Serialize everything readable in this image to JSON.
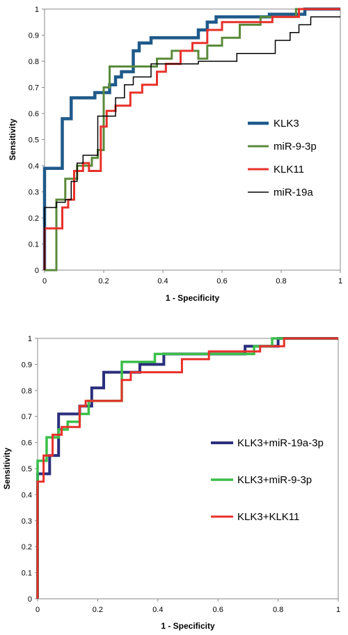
{
  "chart_data": [
    {
      "type": "line",
      "xlabel": "1 - Specificity",
      "ylabel": "Sensitivity",
      "xlim": [
        0,
        1
      ],
      "ylim": [
        0,
        1
      ],
      "xticks": [
        "0",
        "0.2",
        "0.4",
        "0.6",
        "0.8",
        "1"
      ],
      "yticks": [
        "0",
        "0.1",
        "0.2",
        "0.3",
        "0.4",
        "0.5",
        "0.6",
        "0.7",
        "0.8",
        "0.9",
        "1"
      ],
      "grid": false,
      "legend_position": "right",
      "series": [
        {
          "name": "KLK3",
          "color": "#1f5a8a",
          "width": 4.5,
          "points": [
            [
              0,
              0
            ],
            [
              0,
              0.39
            ],
            [
              0.06,
              0.39
            ],
            [
              0.06,
              0.58
            ],
            [
              0.09,
              0.58
            ],
            [
              0.09,
              0.66
            ],
            [
              0.17,
              0.66
            ],
            [
              0.17,
              0.68
            ],
            [
              0.22,
              0.68
            ],
            [
              0.22,
              0.71
            ],
            [
              0.24,
              0.71
            ],
            [
              0.24,
              0.74
            ],
            [
              0.26,
              0.74
            ],
            [
              0.26,
              0.76
            ],
            [
              0.3,
              0.76
            ],
            [
              0.3,
              0.84
            ],
            [
              0.32,
              0.84
            ],
            [
              0.32,
              0.87
            ],
            [
              0.36,
              0.87
            ],
            [
              0.36,
              0.89
            ],
            [
              0.52,
              0.89
            ],
            [
              0.52,
              0.92
            ],
            [
              0.55,
              0.92
            ],
            [
              0.55,
              0.95
            ],
            [
              0.58,
              0.95
            ],
            [
              0.58,
              0.97
            ],
            [
              0.76,
              0.97
            ],
            [
              0.76,
              0.98
            ],
            [
              0.88,
              0.98
            ],
            [
              0.88,
              1
            ],
            [
              1,
              1
            ]
          ]
        },
        {
          "name": "miR-9-3p",
          "color": "#5a8a3a",
          "width": 3,
          "points": [
            [
              0,
              0
            ],
            [
              0.04,
              0
            ],
            [
              0.04,
              0.27
            ],
            [
              0.07,
              0.27
            ],
            [
              0.07,
              0.35
            ],
            [
              0.11,
              0.35
            ],
            [
              0.11,
              0.4
            ],
            [
              0.16,
              0.4
            ],
            [
              0.16,
              0.43
            ],
            [
              0.18,
              0.43
            ],
            [
              0.18,
              0.46
            ],
            [
              0.2,
              0.46
            ],
            [
              0.2,
              0.7
            ],
            [
              0.22,
              0.7
            ],
            [
              0.22,
              0.78
            ],
            [
              0.38,
              0.78
            ],
            [
              0.38,
              0.81
            ],
            [
              0.43,
              0.81
            ],
            [
              0.43,
              0.84
            ],
            [
              0.52,
              0.84
            ],
            [
              0.52,
              0.81
            ],
            [
              0.55,
              0.81
            ],
            [
              0.55,
              0.86
            ],
            [
              0.6,
              0.86
            ],
            [
              0.6,
              0.89
            ],
            [
              0.66,
              0.89
            ],
            [
              0.66,
              0.94
            ],
            [
              0.73,
              0.94
            ],
            [
              0.73,
              0.97
            ],
            [
              0.85,
              0.97
            ],
            [
              0.85,
              1
            ],
            [
              1,
              1
            ]
          ]
        },
        {
          "name": "KLK11",
          "color": "#e8302a",
          "width": 3,
          "points": [
            [
              0,
              0
            ],
            [
              0,
              0.16
            ],
            [
              0.06,
              0.16
            ],
            [
              0.06,
              0.24
            ],
            [
              0.08,
              0.24
            ],
            [
              0.08,
              0.27
            ],
            [
              0.1,
              0.27
            ],
            [
              0.1,
              0.38
            ],
            [
              0.13,
              0.38
            ],
            [
              0.13,
              0.41
            ],
            [
              0.15,
              0.41
            ],
            [
              0.15,
              0.38
            ],
            [
              0.19,
              0.38
            ],
            [
              0.19,
              0.55
            ],
            [
              0.21,
              0.55
            ],
            [
              0.21,
              0.61
            ],
            [
              0.24,
              0.61
            ],
            [
              0.24,
              0.63
            ],
            [
              0.29,
              0.63
            ],
            [
              0.29,
              0.68
            ],
            [
              0.33,
              0.68
            ],
            [
              0.33,
              0.71
            ],
            [
              0.38,
              0.71
            ],
            [
              0.38,
              0.76
            ],
            [
              0.41,
              0.76
            ],
            [
              0.41,
              0.79
            ],
            [
              0.46,
              0.79
            ],
            [
              0.46,
              0.84
            ],
            [
              0.5,
              0.84
            ],
            [
              0.5,
              0.87
            ],
            [
              0.55,
              0.87
            ],
            [
              0.55,
              0.92
            ],
            [
              0.6,
              0.92
            ],
            [
              0.6,
              0.95
            ],
            [
              0.77,
              0.95
            ],
            [
              0.77,
              0.97
            ],
            [
              0.86,
              0.97
            ],
            [
              0.86,
              1
            ],
            [
              1,
              1
            ]
          ]
        },
        {
          "name": "miR-19a",
          "color": "#000000",
          "width": 1.5,
          "points": [
            [
              0,
              0
            ],
            [
              0,
              0.24
            ],
            [
              0.04,
              0.24
            ],
            [
              0.04,
              0.26
            ],
            [
              0.07,
              0.26
            ],
            [
              0.07,
              0.27
            ],
            [
              0.09,
              0.27
            ],
            [
              0.09,
              0.34
            ],
            [
              0.11,
              0.34
            ],
            [
              0.11,
              0.41
            ],
            [
              0.13,
              0.41
            ],
            [
              0.13,
              0.44
            ],
            [
              0.18,
              0.44
            ],
            [
              0.18,
              0.59
            ],
            [
              0.24,
              0.59
            ],
            [
              0.24,
              0.66
            ],
            [
              0.27,
              0.66
            ],
            [
              0.27,
              0.71
            ],
            [
              0.3,
              0.71
            ],
            [
              0.3,
              0.74
            ],
            [
              0.36,
              0.74
            ],
            [
              0.36,
              0.79
            ],
            [
              0.52,
              0.79
            ],
            [
              0.52,
              0.8
            ],
            [
              0.65,
              0.8
            ],
            [
              0.65,
              0.83
            ],
            [
              0.78,
              0.83
            ],
            [
              0.78,
              0.88
            ],
            [
              0.83,
              0.88
            ],
            [
              0.83,
              0.91
            ],
            [
              0.86,
              0.91
            ],
            [
              0.86,
              0.94
            ],
            [
              0.9,
              0.94
            ],
            [
              0.9,
              0.97
            ],
            [
              1,
              0.97
            ]
          ]
        }
      ]
    },
    {
      "type": "line",
      "xlabel": "1 - Specificity",
      "ylabel": "Sensitivity",
      "xlim": [
        0,
        1
      ],
      "ylim": [
        0,
        1
      ],
      "xticks": [
        "0",
        "0.2",
        "0.4",
        "0.6",
        "0.8",
        "1"
      ],
      "yticks": [
        "0",
        "0.1",
        "0.2",
        "0.3",
        "0.4",
        "0.5",
        "0.6",
        "0.7",
        "0.8",
        "0.9",
        "1"
      ],
      "grid": false,
      "legend_position": "right",
      "series": [
        {
          "name": "KLK3+miR-19a-3p",
          "color": "#2b2f7d",
          "width": 4,
          "points": [
            [
              0,
              0
            ],
            [
              0,
              0.48
            ],
            [
              0.04,
              0.48
            ],
            [
              0.04,
              0.55
            ],
            [
              0.07,
              0.55
            ],
            [
              0.07,
              0.71
            ],
            [
              0.14,
              0.71
            ],
            [
              0.14,
              0.74
            ],
            [
              0.18,
              0.74
            ],
            [
              0.18,
              0.81
            ],
            [
              0.22,
              0.81
            ],
            [
              0.22,
              0.87
            ],
            [
              0.34,
              0.87
            ],
            [
              0.34,
              0.9
            ],
            [
              0.42,
              0.9
            ],
            [
              0.42,
              0.94
            ],
            [
              0.69,
              0.94
            ],
            [
              0.69,
              0.97
            ],
            [
              0.8,
              0.97
            ],
            [
              0.8,
              1
            ],
            [
              1,
              1
            ]
          ]
        },
        {
          "name": "KLK3+miR-9-3p",
          "color": "#3bbf4a",
          "width": 3.5,
          "points": [
            [
              0,
              0
            ],
            [
              0,
              0.53
            ],
            [
              0.03,
              0.53
            ],
            [
              0.03,
              0.62
            ],
            [
              0.07,
              0.62
            ],
            [
              0.07,
              0.65
            ],
            [
              0.1,
              0.65
            ],
            [
              0.1,
              0.68
            ],
            [
              0.14,
              0.68
            ],
            [
              0.14,
              0.71
            ],
            [
              0.17,
              0.71
            ],
            [
              0.17,
              0.76
            ],
            [
              0.28,
              0.76
            ],
            [
              0.28,
              0.91
            ],
            [
              0.39,
              0.91
            ],
            [
              0.39,
              0.94
            ],
            [
              0.72,
              0.94
            ],
            [
              0.72,
              0.97
            ],
            [
              0.78,
              0.97
            ],
            [
              0.78,
              1
            ],
            [
              1,
              1
            ]
          ]
        },
        {
          "name": "KLK3+KLK11",
          "color": "#e8302a",
          "width": 3,
          "points": [
            [
              0,
              0
            ],
            [
              0,
              0.45
            ],
            [
              0.02,
              0.45
            ],
            [
              0.02,
              0.55
            ],
            [
              0.05,
              0.55
            ],
            [
              0.05,
              0.63
            ],
            [
              0.08,
              0.63
            ],
            [
              0.08,
              0.66
            ],
            [
              0.14,
              0.66
            ],
            [
              0.14,
              0.74
            ],
            [
              0.16,
              0.74
            ],
            [
              0.16,
              0.76
            ],
            [
              0.28,
              0.76
            ],
            [
              0.28,
              0.84
            ],
            [
              0.31,
              0.84
            ],
            [
              0.31,
              0.87
            ],
            [
              0.48,
              0.87
            ],
            [
              0.48,
              0.92
            ],
            [
              0.57,
              0.92
            ],
            [
              0.57,
              0.95
            ],
            [
              0.74,
              0.95
            ],
            [
              0.74,
              0.97
            ],
            [
              0.82,
              0.97
            ],
            [
              0.82,
              1
            ],
            [
              1,
              1
            ]
          ]
        }
      ]
    }
  ]
}
